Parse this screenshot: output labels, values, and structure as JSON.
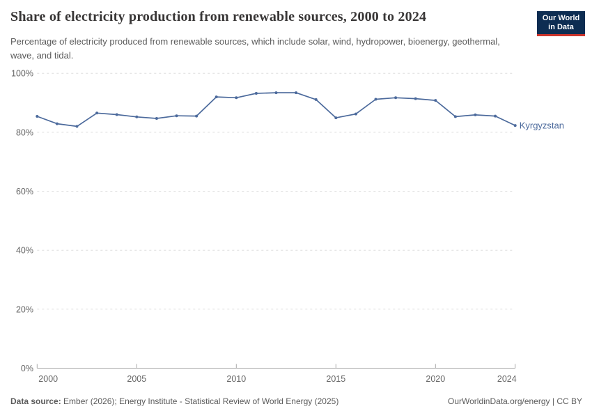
{
  "header": {
    "title": "Share of electricity production from renewable sources, 2000 to 2024",
    "subtitle": "Percentage of electricity produced from renewable sources, which include solar, wind, hydropower, bioenergy, geothermal, wave, and tidal."
  },
  "logo": {
    "line1": "Our World",
    "line2": "in Data",
    "bg_color": "#0d2d52",
    "stripe_color": "#cc342b"
  },
  "chart_data": {
    "type": "line",
    "title": "Share of electricity production from renewable sources, 2000 to 2024",
    "x": [
      2000,
      2001,
      2002,
      2003,
      2004,
      2005,
      2006,
      2007,
      2008,
      2009,
      2010,
      2011,
      2012,
      2013,
      2014,
      2015,
      2016,
      2017,
      2018,
      2019,
      2020,
      2021,
      2022,
      2023,
      2024
    ],
    "series": [
      {
        "name": "Kyrgyzstan",
        "color": "#4c6a9c",
        "values": [
          85.4,
          82.9,
          82.0,
          86.5,
          86.0,
          85.2,
          84.7,
          85.6,
          85.5,
          92.0,
          91.7,
          93.2,
          93.4,
          93.4,
          91.1,
          84.9,
          86.2,
          91.2,
          91.7,
          91.4,
          90.8,
          85.3,
          85.9,
          85.5,
          82.3
        ]
      }
    ],
    "xlabel": "",
    "ylabel": "",
    "ylim": [
      0,
      100
    ],
    "yticks": [
      0,
      20,
      40,
      60,
      80,
      100
    ],
    "ytick_suffix": "%",
    "xticks": [
      2000,
      2005,
      2010,
      2015,
      2020,
      2024
    ],
    "grid": "horizontal-dashed",
    "legend_position": "line-end-label",
    "gridline_color": "#dddddd",
    "axis_line_color": "#a8a8a8",
    "tick_label_color": "#666666"
  },
  "footer": {
    "source_label": "Data source:",
    "source_text": " Ember (2026); Energy Institute - Statistical Review of World Energy (2025)",
    "credit": "OurWorldinData.org/energy | CC BY"
  }
}
